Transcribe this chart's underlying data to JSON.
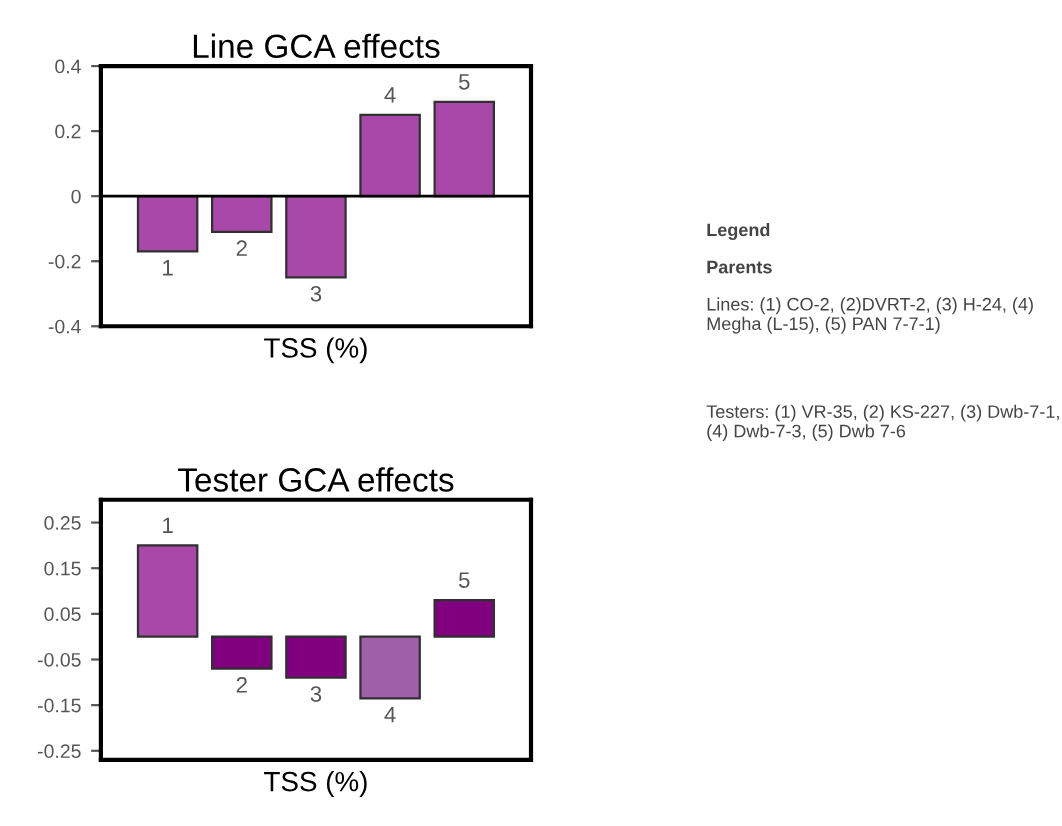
{
  "chart_data": [
    {
      "type": "bar",
      "title": "Line GCA effects",
      "xlabel": "TSS (%)",
      "categories": [
        "1",
        "2",
        "3",
        "4",
        "5"
      ],
      "values": [
        -0.17,
        -0.11,
        -0.25,
        0.25,
        0.29
      ],
      "colors": [
        "#a848a8",
        "#a848a8",
        "#a848a8",
        "#a848a8",
        "#a848a8"
      ],
      "ylim": [
        -0.4,
        0.4
      ],
      "yticks": [
        0.4,
        0.2,
        0,
        -0.2,
        -0.4
      ],
      "tick_labels": "y",
      "ref_lines": [
        {
          "axis": "y",
          "value": 0,
          "color": "#000000"
        }
      ],
      "annotations": [
        "Legend",
        "Parents",
        "Lines: (1) CO-2, (2)DVRT-2, (3) H-24, (4) Megha (L-15), (5) PAN 7-7-1)",
        "Testers: (1) VR-35, (2) KS-227, (3) Dwb-7-1, (4) Dwb-7-3, (5) Dwb 7-6"
      ]
    },
    {
      "type": "bar",
      "title": "Tester GCA effects",
      "xlabel": "TSS (%)",
      "categories": [
        "1",
        "2",
        "3",
        "4",
        "5"
      ],
      "values": [
        0.2,
        -0.07,
        -0.09,
        -0.135,
        0.08
      ],
      "colors": [
        "#a848a8",
        "#800080",
        "#800080",
        "#a060a8",
        "#800080"
      ],
      "ylim": [
        -0.27,
        0.3
      ],
      "yticks": [
        0.25,
        0.15,
        0.05,
        -0.05,
        -0.15,
        -0.25
      ],
      "tick_labels": "y"
    }
  ]
}
